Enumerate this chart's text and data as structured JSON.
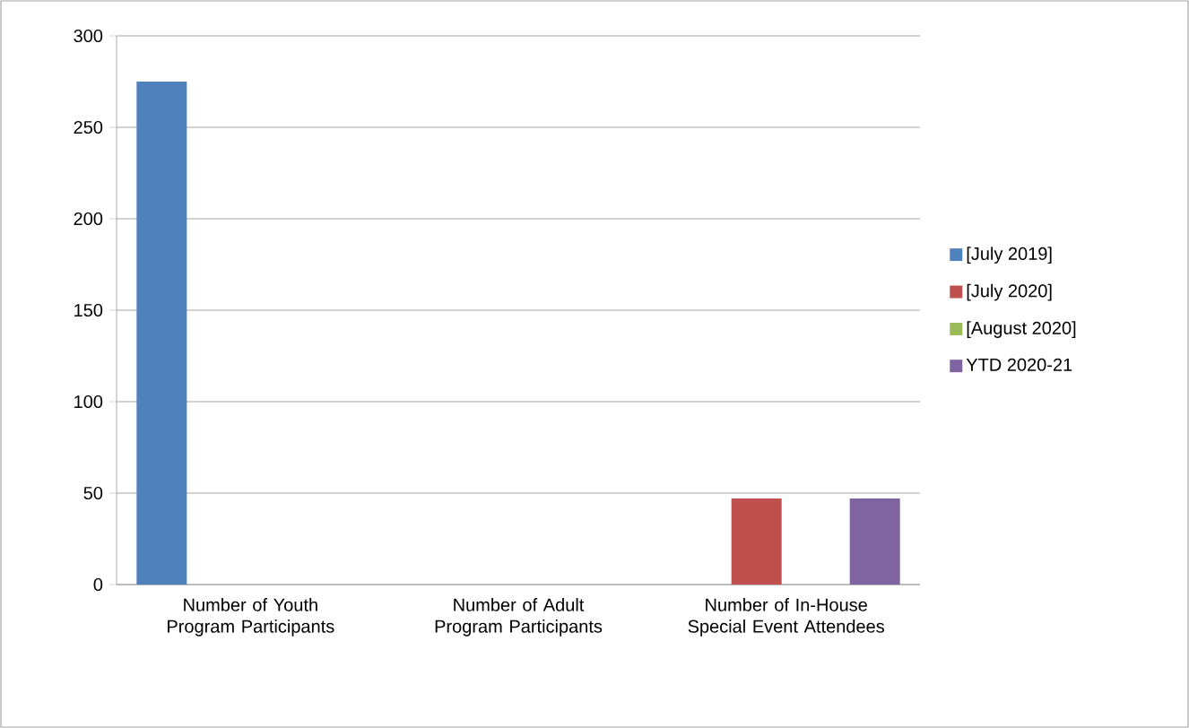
{
  "chart_data": {
    "type": "bar",
    "categories": [
      "Number of Youth Program Participants",
      "Number of Adult Program Participants",
      "Number of In-House Special Event Attendees"
    ],
    "series": [
      {
        "name": "[July 2019]",
        "color": "#4f81bd",
        "values": [
          275,
          null,
          null
        ]
      },
      {
        "name": "[July 2020]",
        "color": "#c0504d",
        "values": [
          null,
          null,
          47
        ]
      },
      {
        "name": "[August 2020]",
        "color": "#9bbb59",
        "values": [
          null,
          null,
          null
        ]
      },
      {
        "name": "YTD 2020-21",
        "color": "#8064a2",
        "values": [
          null,
          null,
          47
        ]
      }
    ],
    "ylim": [
      0,
      300
    ],
    "yticks": [
      0,
      50,
      100,
      150,
      200,
      250,
      300
    ],
    "grid": "y",
    "legend": "right"
  }
}
